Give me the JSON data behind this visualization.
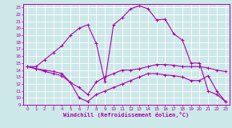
{
  "xlabel": "Windchill (Refroidissement éolien,°C)",
  "background_color": "#cde8e8",
  "grid_color": "#ffffff",
  "line_color": "#aa00aa",
  "spine_color": "#aa00aa",
  "xlim": [
    -0.5,
    23.5
  ],
  "ylim": [
    9,
    23.5
  ],
  "x_ticks": [
    0,
    1,
    2,
    3,
    4,
    5,
    6,
    7,
    8,
    9,
    10,
    11,
    12,
    13,
    14,
    15,
    16,
    17,
    18,
    19,
    20,
    21,
    22,
    23
  ],
  "y_ticks": [
    9,
    10,
    11,
    12,
    13,
    14,
    15,
    16,
    17,
    18,
    19,
    20,
    21,
    22,
    23
  ],
  "series1_x": [
    0,
    1,
    2,
    3,
    4,
    5,
    6,
    7,
    8,
    9,
    10,
    11,
    12,
    13,
    14,
    15,
    16,
    17,
    18,
    19,
    20,
    21,
    22,
    23
  ],
  "series1_y": [
    14.5,
    14.5,
    15.5,
    16.5,
    17.5,
    19.0,
    20.0,
    20.5,
    17.8,
    12.3,
    20.5,
    21.5,
    22.8,
    23.2,
    22.8,
    21.2,
    21.3,
    19.2,
    18.3,
    15.0,
    15.0,
    11.0,
    10.5,
    9.5
  ],
  "series2_x": [
    0,
    1,
    2,
    3,
    4,
    5,
    6,
    7,
    8,
    9,
    10,
    11,
    12,
    13,
    14,
    15,
    16,
    17,
    18,
    19,
    20,
    21,
    22,
    23
  ],
  "series2_y": [
    14.5,
    14.2,
    13.8,
    13.5,
    13.2,
    12.2,
    10.0,
    9.5,
    10.5,
    11.0,
    11.5,
    12.0,
    12.5,
    13.0,
    13.5,
    13.5,
    13.3,
    13.2,
    13.0,
    12.5,
    12.5,
    13.2,
    11.0,
    9.5
  ],
  "series3_x": [
    0,
    1,
    2,
    3,
    4,
    5,
    6,
    7,
    8,
    9,
    10,
    11,
    12,
    13,
    14,
    15,
    16,
    17,
    18,
    19,
    20,
    21,
    22,
    23
  ],
  "series3_y": [
    14.5,
    14.2,
    14.0,
    13.8,
    13.5,
    12.2,
    11.5,
    10.5,
    12.3,
    13.0,
    13.5,
    14.0,
    14.0,
    14.2,
    14.5,
    14.8,
    14.8,
    14.7,
    14.5,
    14.5,
    14.5,
    14.3,
    14.0,
    13.8
  ],
  "marker_size": 2.5,
  "line_width": 0.8
}
